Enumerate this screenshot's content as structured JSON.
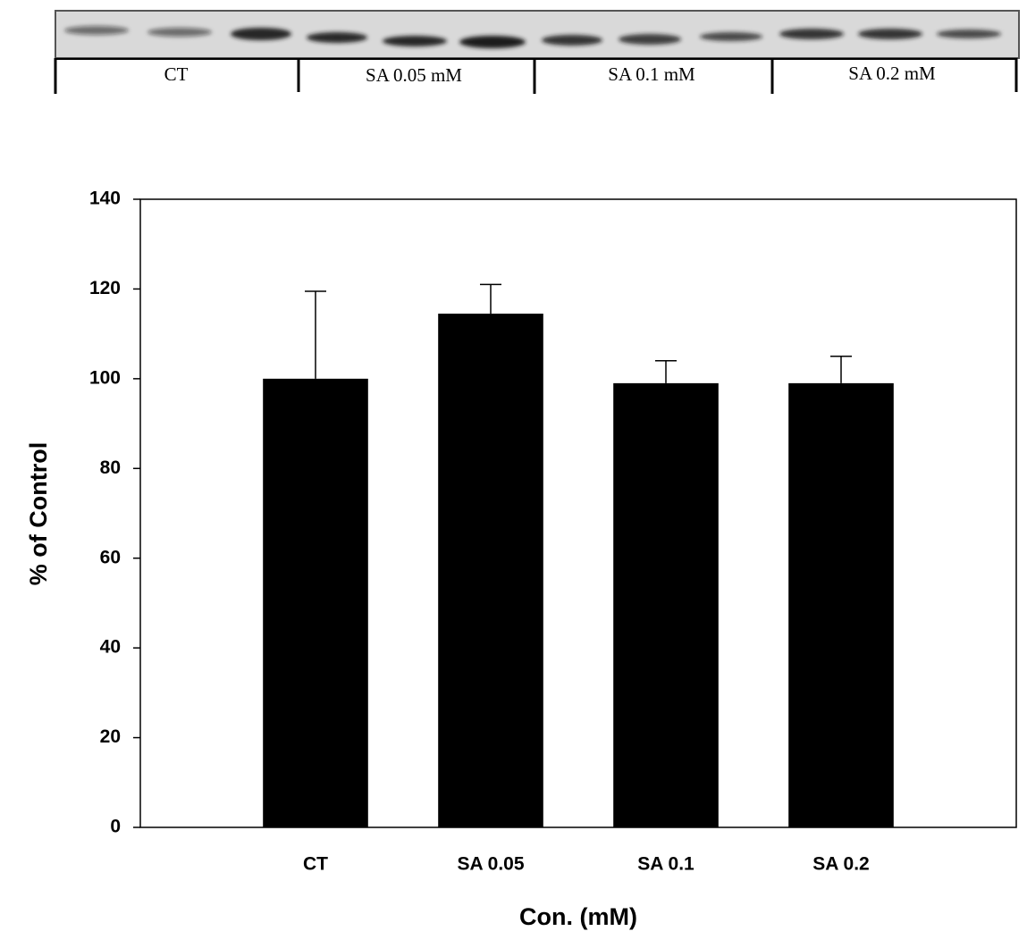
{
  "blot": {
    "lanes": [
      "CT",
      "SA 0.05 mM",
      "SA 0.1 mM",
      "SA 0.2 mM"
    ]
  },
  "chart_data": {
    "type": "bar",
    "categories": [
      "CT",
      "SA 0.05",
      "SA 0.1",
      "SA 0.2"
    ],
    "values": [
      100,
      114.5,
      99,
      99
    ],
    "errors": [
      19.5,
      6.5,
      5,
      6
    ],
    "color": "#000000",
    "ylim": [
      0,
      140
    ],
    "yticks": [
      0,
      20,
      40,
      60,
      80,
      100,
      120,
      140
    ],
    "xlabel": "Con. (mM)",
    "ylabel": "% of Control"
  }
}
